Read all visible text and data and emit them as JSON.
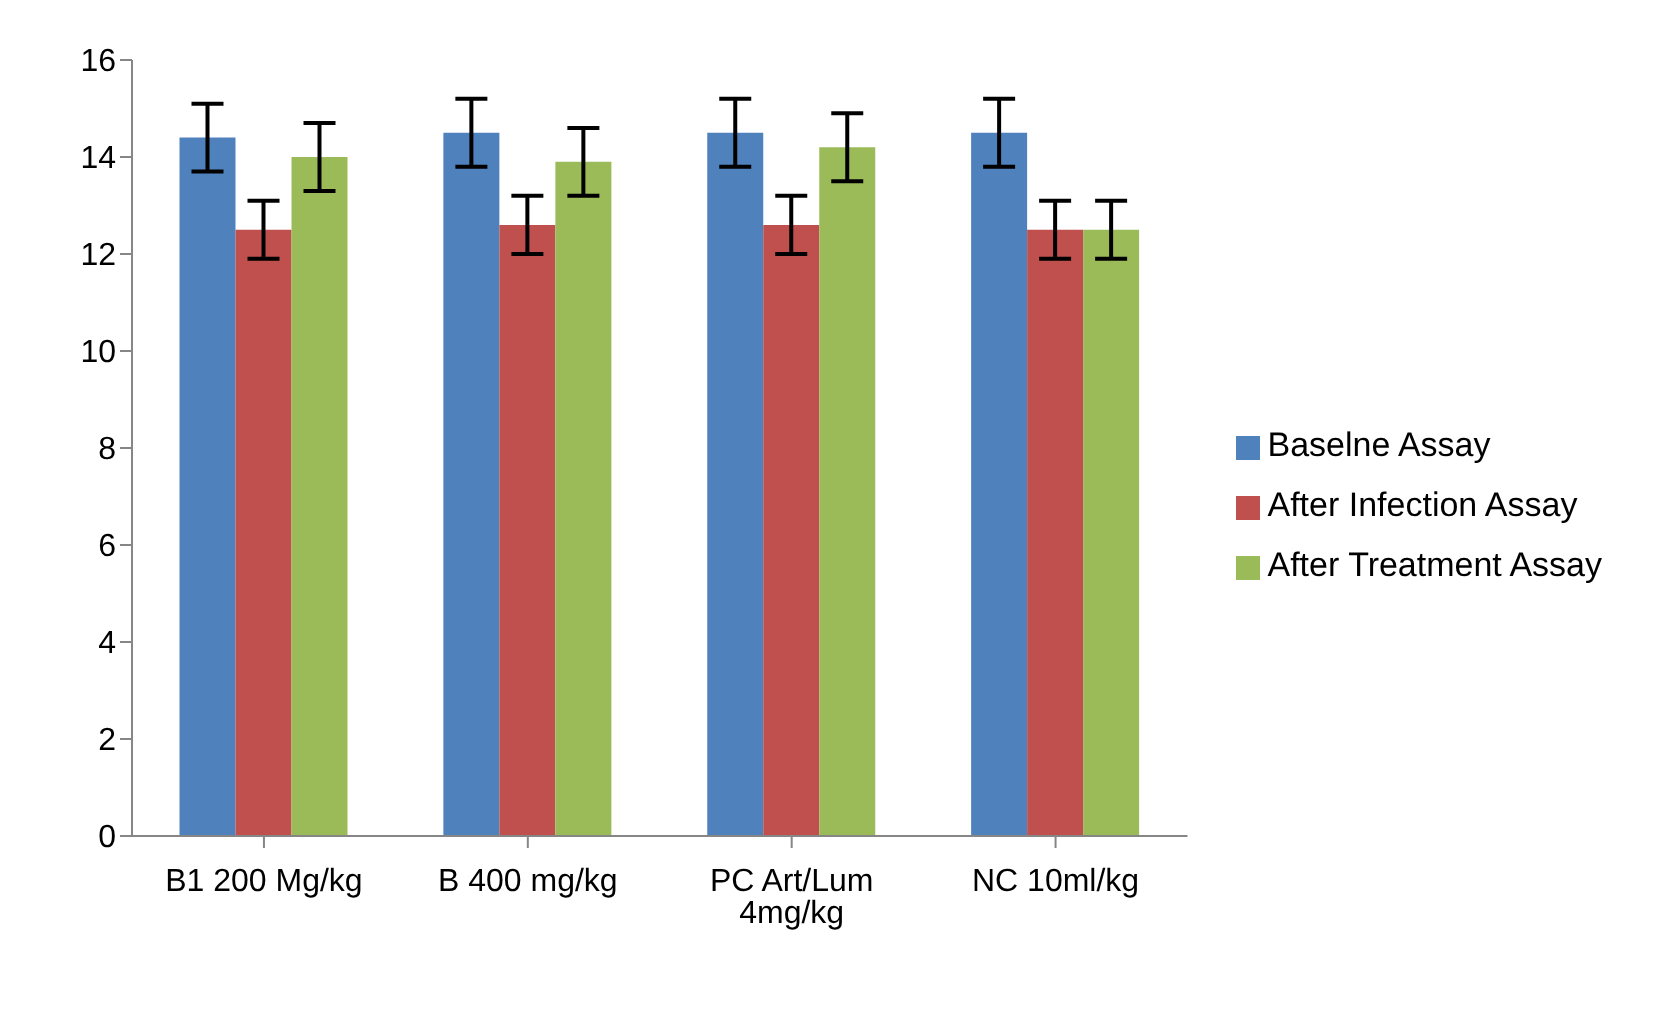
{
  "chart_data": {
    "type": "bar",
    "categories": [
      "B1 200 Mg/kg",
      "B 400 mg/kg",
      "PC Art/Lum 4mg/kg",
      "NC 10ml/kg"
    ],
    "series": [
      {
        "name": "Baselne Assay",
        "color": "#4f81bd",
        "values": [
          14.4,
          14.5,
          14.5,
          14.5
        ],
        "errors": [
          0.7,
          0.7,
          0.7,
          0.7
        ]
      },
      {
        "name": "After Infection Assay",
        "color": "#c0504d",
        "values": [
          12.5,
          12.6,
          12.6,
          12.5
        ],
        "errors": [
          0.6,
          0.6,
          0.6,
          0.6
        ]
      },
      {
        "name": "After Treatment Assay",
        "color": "#9bbb59",
        "values": [
          14.0,
          13.9,
          14.2,
          12.5
        ],
        "errors": [
          0.7,
          0.7,
          0.7,
          0.6
        ]
      }
    ],
    "ylim": [
      0,
      16
    ],
    "yticks": [
      0,
      2,
      4,
      6,
      8,
      10,
      12,
      14,
      16
    ],
    "grid": false,
    "legend": "right"
  }
}
